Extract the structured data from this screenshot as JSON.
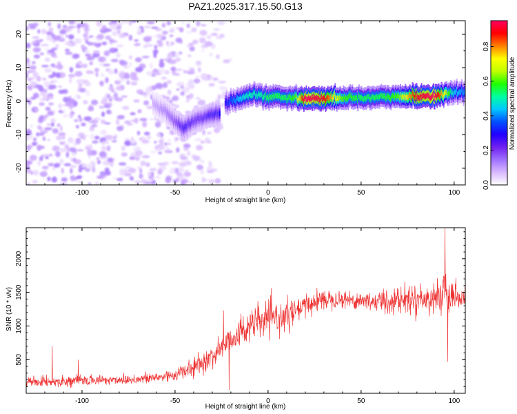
{
  "chart_data": [
    {
      "type": "heatmap",
      "title": "PAZ1.2025.317.15.50.G13",
      "xlabel": "Height of straight line (km)",
      "ylabel": "Frequency (Hz)",
      "xlim": [
        -130,
        106
      ],
      "ylim": [
        -25,
        24
      ],
      "x_ticks": [
        -100,
        -50,
        0,
        50,
        100
      ],
      "x_tick_labels": [
        "-100",
        "-50",
        "0",
        "50",
        "100"
      ],
      "y_ticks": [
        -20,
        -10,
        0,
        10,
        20
      ],
      "y_tick_labels": [
        "-20",
        "-10",
        "0",
        "10",
        "20"
      ],
      "colorbar": {
        "label": "Normalized spectral amplitude",
        "range": [
          0.0,
          0.95
        ],
        "ticks": [
          0.0,
          0.2,
          0.4,
          0.6,
          0.8
        ],
        "tick_labels": [
          "0.0",
          "0.2",
          "0.4",
          "0.6",
          "0.8"
        ],
        "colormap": [
          "#ffffff",
          "#d8b8ff",
          "#a070ff",
          "#7020f0",
          "#2000ff",
          "#0050ff",
          "#00c8ff",
          "#00ffa0",
          "#20ff00",
          "#c0ff00",
          "#ffff00",
          "#ff8000",
          "#ff0000",
          "#ff0060"
        ]
      },
      "ridge": {
        "description": "Tracked signal frequency ridge",
        "x": [
          -23,
          -15,
          -10,
          -5,
          0,
          5,
          10,
          15,
          20,
          30,
          40,
          50,
          60,
          70,
          80,
          90,
          100,
          106
        ],
        "frequency": [
          -0.5,
          0.5,
          1.5,
          2.0,
          1.0,
          1.5,
          1.0,
          1.0,
          0.8,
          0.8,
          1.0,
          1.0,
          1.2,
          1.3,
          1.5,
          1.5,
          2.5,
          2.8
        ],
        "amplitude": [
          0.3,
          0.45,
          0.5,
          0.5,
          0.55,
          0.55,
          0.55,
          0.6,
          0.95,
          0.9,
          0.6,
          0.55,
          0.55,
          0.6,
          0.9,
          0.95,
          0.45,
          0.4
        ]
      },
      "descending_branch": {
        "x": [
          -62,
          -55,
          -50,
          -45,
          -40,
          -35,
          -30,
          -26
        ],
        "frequency": [
          -0.5,
          -3,
          -6,
          -8,
          -6,
          -5,
          -4,
          -4
        ],
        "amplitude": [
          0.1,
          0.15,
          0.2,
          0.3,
          0.25,
          0.25,
          0.3,
          0.3
        ]
      },
      "noise_region": {
        "x_from": -130,
        "x_to": -25,
        "amplitude_max": 0.12
      }
    },
    {
      "type": "line",
      "title": "",
      "xlabel": "Height of straight line (km)",
      "ylabel": "SNR (10 * v/v)",
      "xlim": [
        -130,
        106
      ],
      "ylim": [
        0,
        2460
      ],
      "x_ticks": [
        -100,
        -50,
        0,
        50,
        100
      ],
      "x_tick_labels": [
        "-100",
        "-50",
        "0",
        "50",
        "100"
      ],
      "y_ticks": [
        500,
        1000,
        1500,
        2000
      ],
      "y_tick_labels": [
        "500",
        "1000",
        "1500",
        "2000"
      ],
      "series": [
        {
          "name": "SNR",
          "color": "#ee3333",
          "x": [
            -130,
            -120,
            -110,
            -100,
            -90,
            -80,
            -70,
            -60,
            -50,
            -45,
            -40,
            -35,
            -30,
            -25,
            -22,
            -20,
            -15,
            -10,
            -5,
            0,
            5,
            10,
            15,
            20,
            25,
            30,
            35,
            40,
            45,
            50,
            55,
            60,
            65,
            70,
            75,
            80,
            85,
            90,
            92,
            95,
            97,
            100,
            106
          ],
          "y": [
            170,
            175,
            180,
            190,
            195,
            200,
            210,
            230,
            280,
            320,
            380,
            450,
            550,
            680,
            750,
            820,
            900,
            1000,
            1060,
            1100,
            1120,
            1150,
            1200,
            1300,
            1360,
            1400,
            1410,
            1400,
            1380,
            1380,
            1370,
            1360,
            1370,
            1390,
            1400,
            1410,
            1400,
            1420,
            1500,
            1430,
            1400,
            1420,
            1400
          ],
          "noise_amplitude": [
            80,
            80,
            85,
            85,
            85,
            85,
            90,
            100,
            120,
            130,
            140,
            160,
            190,
            220,
            230,
            240,
            250,
            260,
            270,
            270,
            260,
            240,
            220,
            200,
            180,
            160,
            150,
            150,
            150,
            150,
            170,
            200,
            220,
            230,
            230,
            220,
            230,
            260,
            300,
            500,
            250,
            200,
            200
          ]
        }
      ],
      "spikes": [
        {
          "x": -116,
          "y": 700
        },
        {
          "x": -102,
          "y": 500
        },
        {
          "x": -24,
          "y": 1230
        },
        {
          "x": -21,
          "y": 50
        },
        {
          "x": 95,
          "y": 2450
        },
        {
          "x": 96.5,
          "y": 470
        }
      ]
    }
  ]
}
